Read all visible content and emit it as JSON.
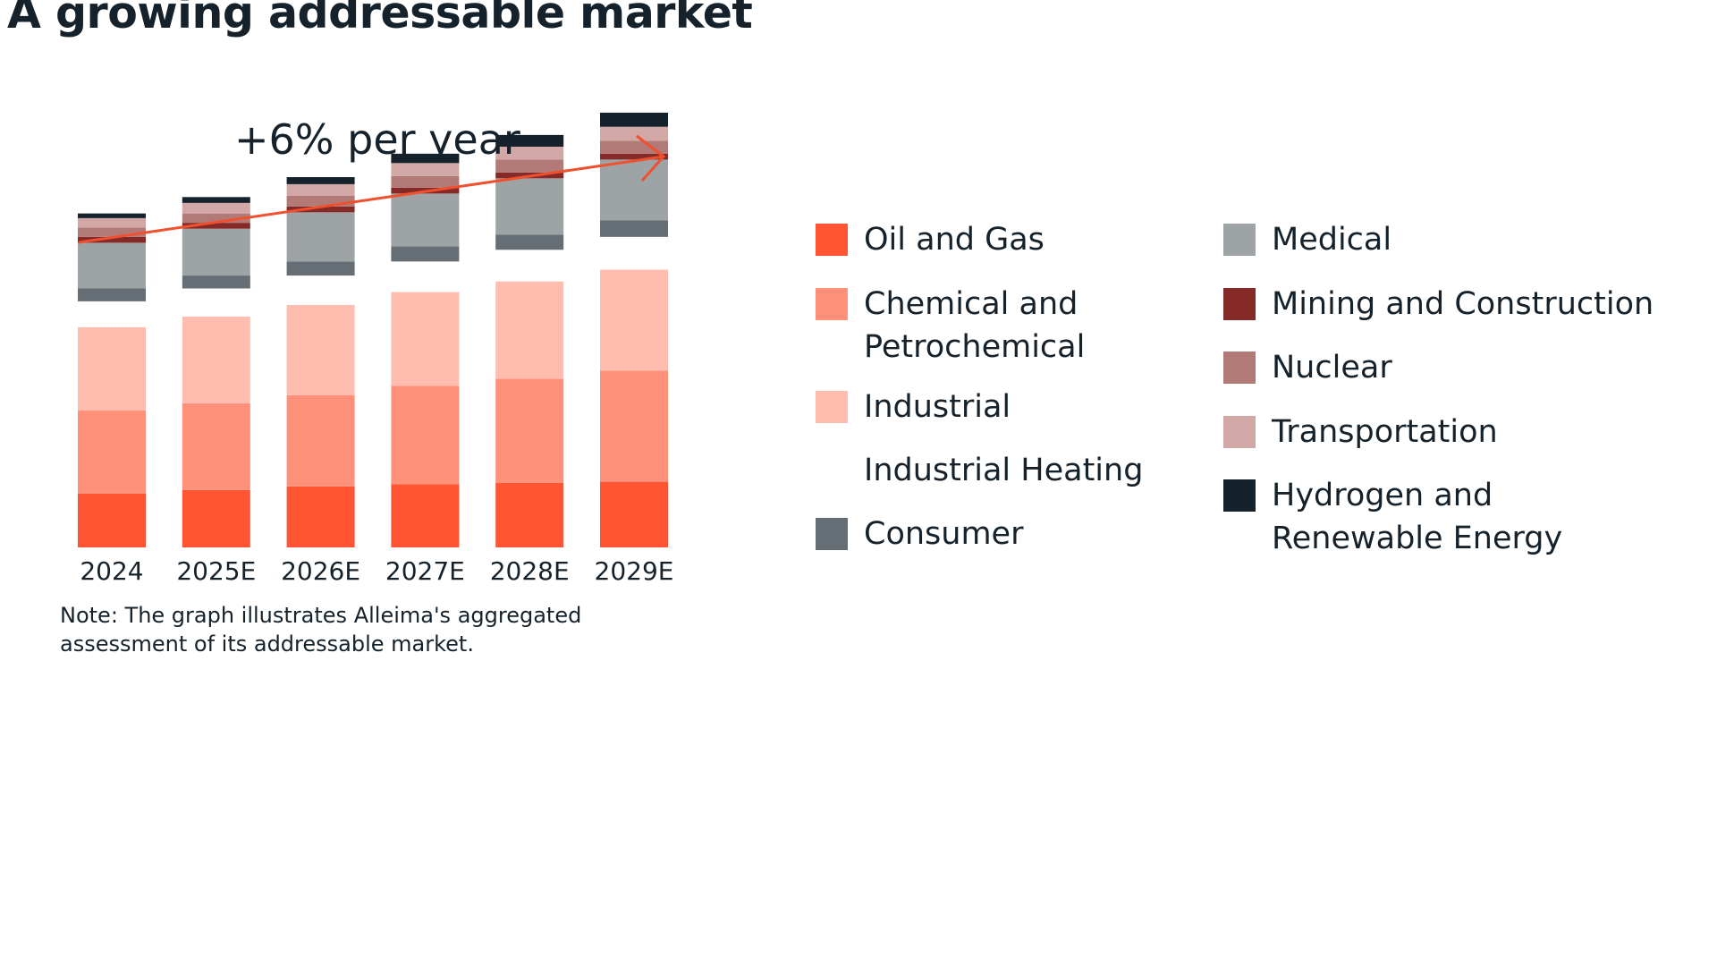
{
  "title": "A growing addressable market",
  "growth_label": "+6% per year",
  "note": "Note: The graph illustrates Alleima's aggregated assessment of its addressable market.",
  "colors": {
    "Oil and Gas": "#ff5533",
    "Chemical and Petrochemical": "#ff917a",
    "Industrial": "#ffbdb0",
    "Industrial Heating": "#ffffff",
    "Consumer": "#646e74",
    "Medical": "#9ea3a6",
    "Mining and Construction": "#852a27",
    "Nuclear": "#b27a77",
    "Transportation": "#d1a8a6",
    "Hydrogen and Renewable Energy": "#15222b",
    "arrow": "#f0502e"
  },
  "legend": {
    "col1": [
      {
        "key": "Oil and Gas",
        "lines": [
          "Oil and Gas"
        ]
      },
      {
        "key": "Chemical and Petrochemical",
        "lines": [
          "Chemical and",
          "Petrochemical"
        ]
      },
      {
        "key": "Industrial",
        "lines": [
          "Industrial"
        ]
      },
      {
        "key": "Industrial Heating",
        "lines": [
          "Industrial Heating"
        ]
      },
      {
        "key": "Consumer",
        "lines": [
          "Consumer"
        ]
      }
    ],
    "col2": [
      {
        "key": "Medical",
        "lines": [
          "Medical"
        ]
      },
      {
        "key": "Mining and Construction",
        "lines": [
          "Mining and Construction"
        ]
      },
      {
        "key": "Nuclear",
        "lines": [
          "Nuclear"
        ]
      },
      {
        "key": "Transportation",
        "lines": [
          "Transportation"
        ]
      },
      {
        "key": "Hydrogen and Renewable Energy",
        "lines": [
          "Hydrogen and",
          "Renewable Energy"
        ]
      }
    ]
  },
  "chart_data": {
    "type": "bar",
    "stacked": true,
    "categories": [
      "2024",
      "2025E",
      "2026E",
      "2027E",
      "2028E",
      "2029E"
    ],
    "series": [
      {
        "name": "Oil and Gas",
        "values": [
          46,
          49,
          52,
          54,
          55,
          56
        ]
      },
      {
        "name": "Chemical and Petrochemical",
        "values": [
          71,
          74,
          78,
          84,
          89,
          95
        ]
      },
      {
        "name": "Industrial",
        "values": [
          71,
          74,
          77,
          80,
          83,
          86
        ]
      },
      {
        "name": "Industrial Heating",
        "values": [
          22,
          24,
          25,
          26,
          27,
          28
        ]
      },
      {
        "name": "Consumer",
        "values": [
          11,
          11,
          12,
          13,
          13,
          14
        ]
      },
      {
        "name": "Medical",
        "values": [
          39,
          40,
          42,
          45,
          48,
          52
        ]
      },
      {
        "name": "Mining and Construction",
        "values": [
          5,
          5,
          5,
          5,
          5,
          5
        ]
      },
      {
        "name": "Nuclear",
        "values": [
          8,
          8,
          9,
          10,
          11,
          11
        ]
      },
      {
        "name": "Transportation",
        "values": [
          8,
          9,
          10,
          11,
          11,
          12
        ]
      },
      {
        "name": "Hydrogen and Renewable Energy",
        "values": [
          4,
          5,
          6,
          8,
          10,
          12
        ]
      }
    ],
    "annotation": "+6% per year",
    "grid": false,
    "legend_position": "right"
  }
}
